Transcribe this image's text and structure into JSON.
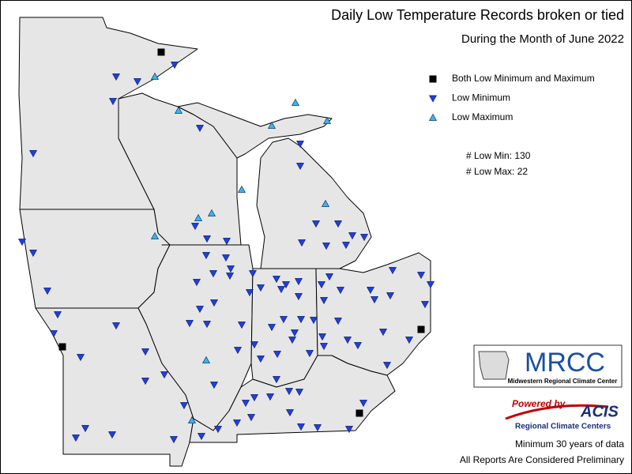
{
  "title": "Daily Low Temperature Records broken or tied",
  "subtitle": "During the Month of June 2022",
  "legend": [
    {
      "label": "Both Low Minimum and Maximum",
      "symbol": "square",
      "color": "#000000"
    },
    {
      "label": "Low Minimum",
      "symbol": "triangle-down",
      "color": "#1f3fe0"
    },
    {
      "label": "Low Maximum",
      "symbol": "triangle-up",
      "color": "#35b8e8"
    }
  ],
  "stats": [
    "# Low Min: 130",
    "# Low Max: 22"
  ],
  "logos": {
    "mrcc": {
      "name": "MRCC",
      "full_name": "Midwestern Regional Climate Center"
    },
    "acis": {
      "powered_by": "Powered by",
      "name": "ACIS",
      "tagline": "Regional Climate Centers"
    }
  },
  "footer": [
    "Minimum 30 years of data",
    "All Reports Are Considered Preliminary"
  ]
}
